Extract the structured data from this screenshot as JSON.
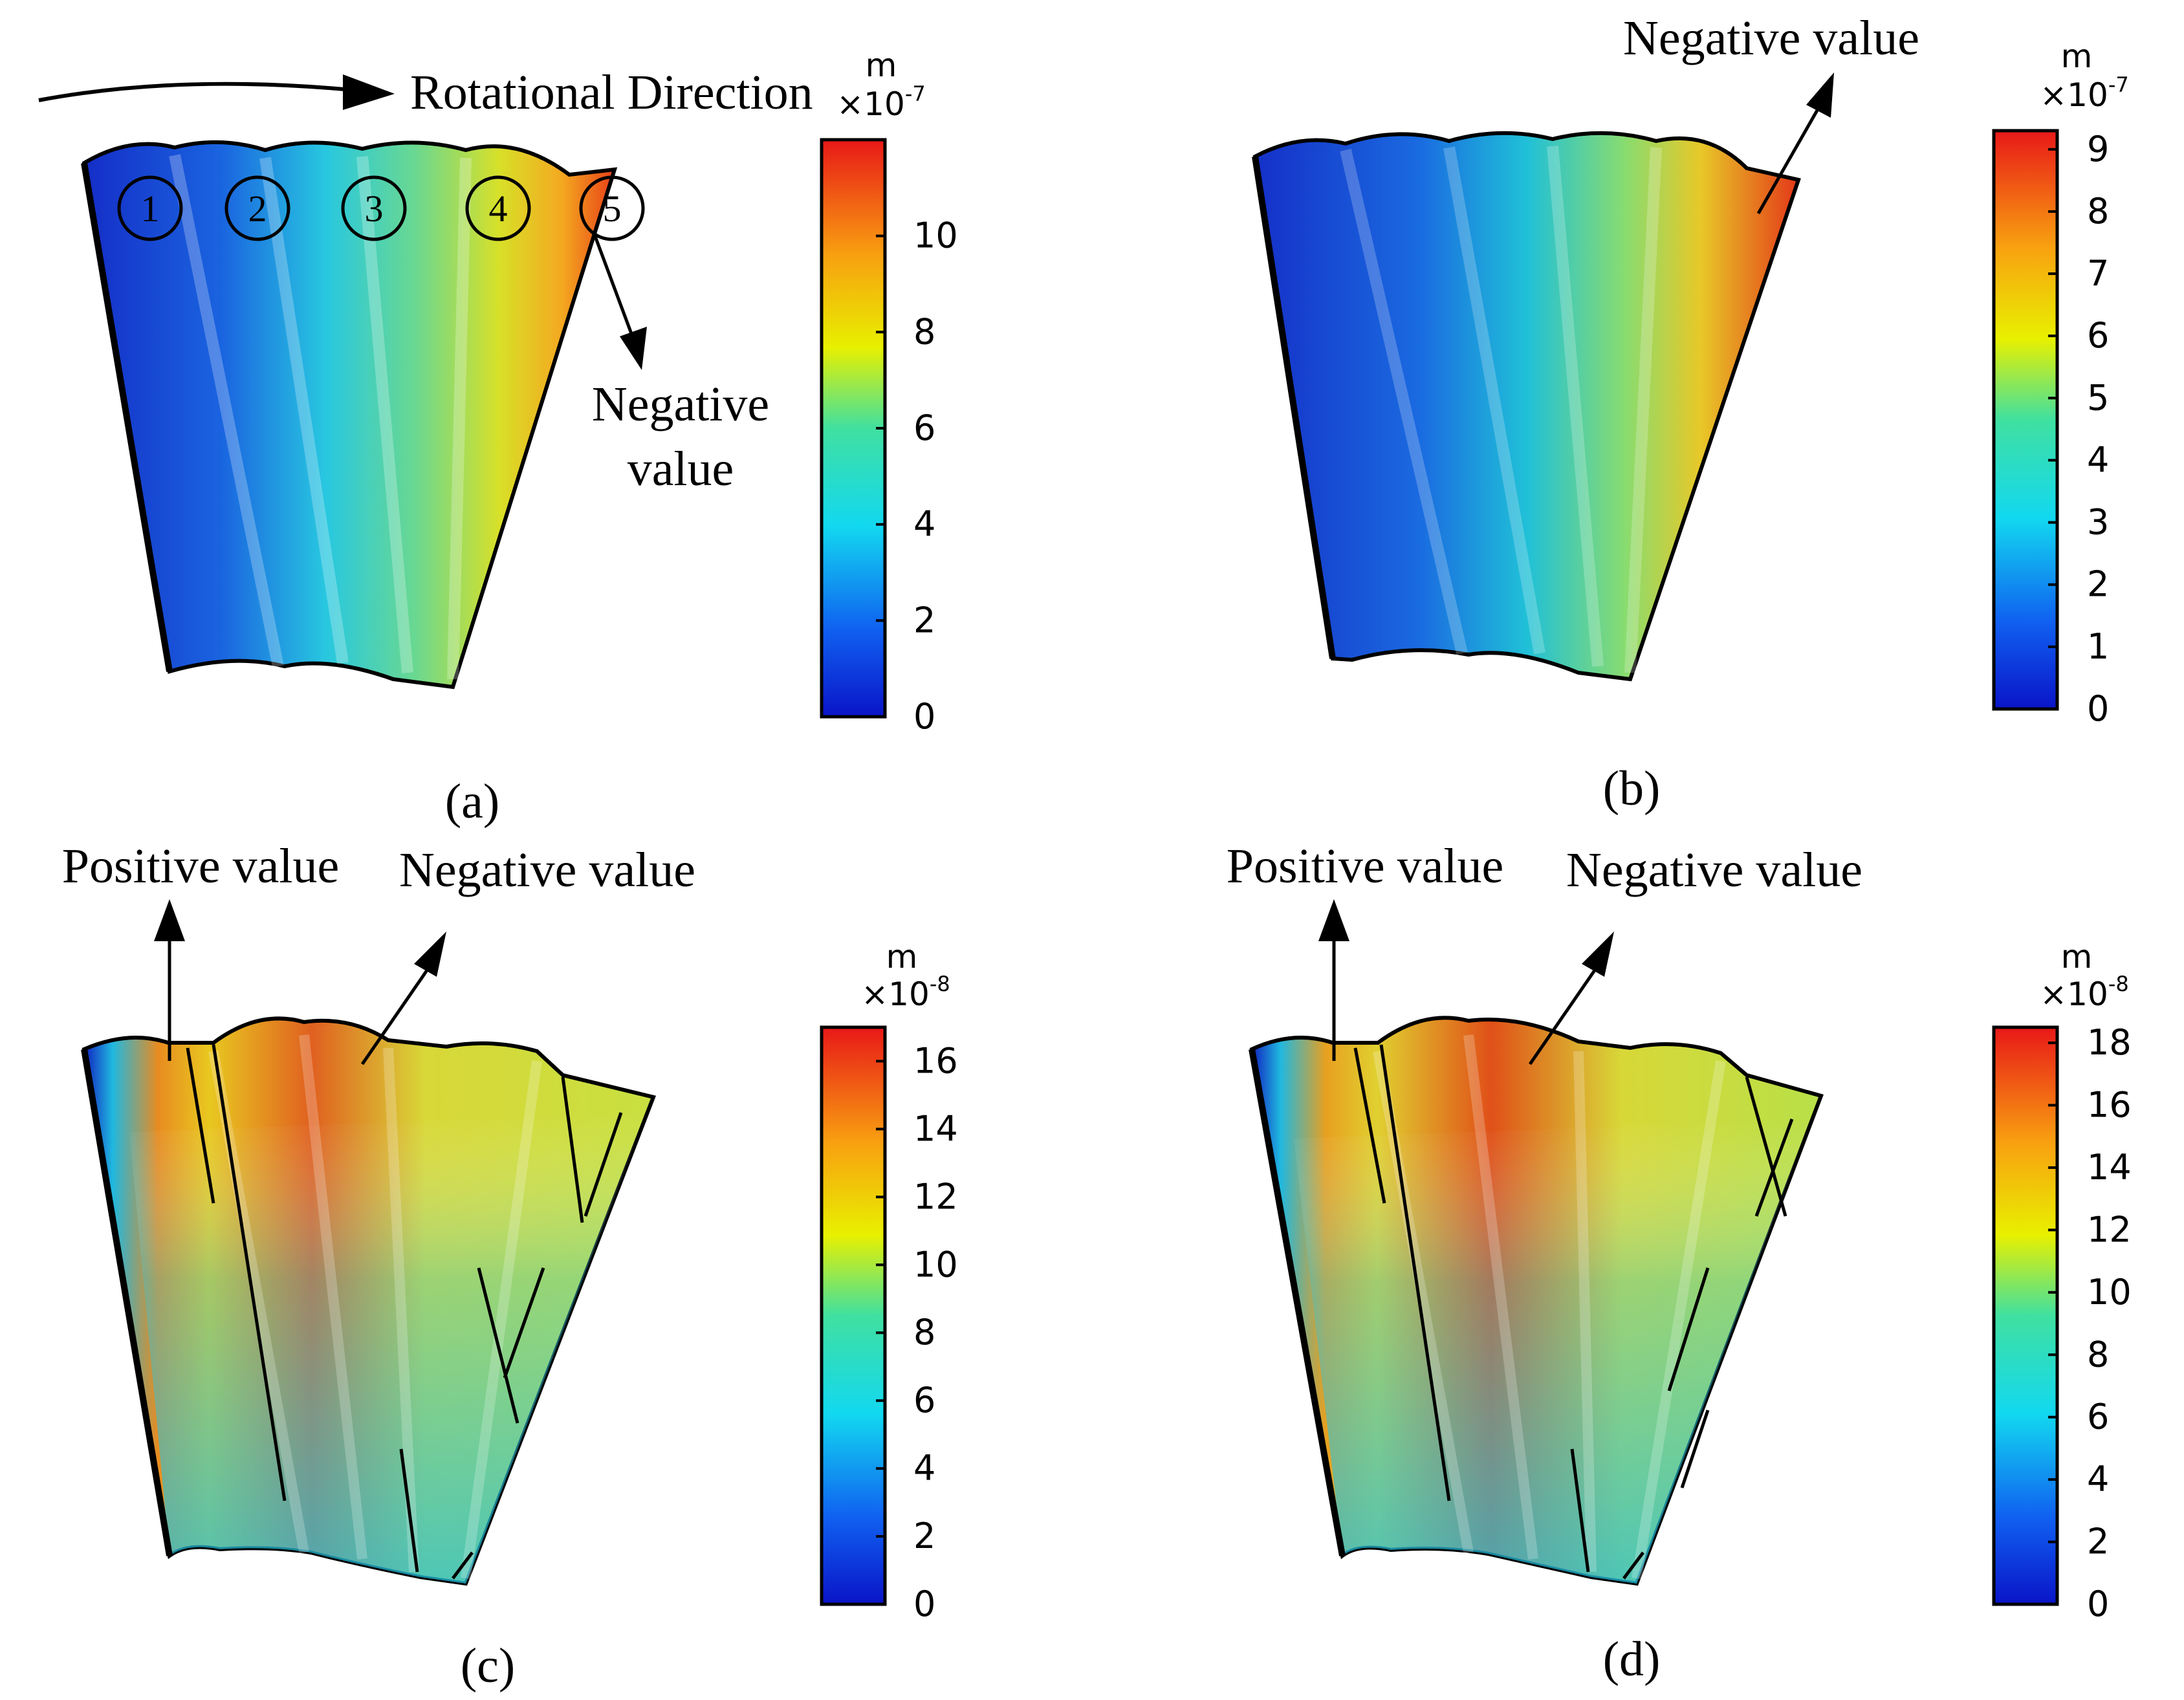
{
  "panels": [
    {
      "id": "a",
      "caption": "(a)",
      "colorbar": {
        "unit": "m",
        "exponent": "×10",
        "exponent_power": "-7",
        "ticks": [
          "0",
          "2",
          "4",
          "6",
          "8",
          "10"
        ],
        "min": 0,
        "max": 12
      },
      "annotations": {
        "rotation_label": "Rotational Direction",
        "negative_label_line1": "Negative",
        "negative_label_line2": "value",
        "markers": [
          "1",
          "2",
          "3",
          "4",
          "5"
        ]
      }
    },
    {
      "id": "b",
      "caption": "(b)",
      "colorbar": {
        "unit": "m",
        "exponent": "×10",
        "exponent_power": "-7",
        "ticks": [
          "0",
          "1",
          "2",
          "3",
          "4",
          "5",
          "6",
          "7",
          "8",
          "9"
        ],
        "min": 0,
        "max": 9.3
      },
      "annotations": {
        "negative_label": "Negative value"
      }
    },
    {
      "id": "c",
      "caption": "(c)",
      "colorbar": {
        "unit": "m",
        "exponent": "×10",
        "exponent_power": "-8",
        "ticks": [
          "0",
          "2",
          "4",
          "6",
          "8",
          "10",
          "12",
          "14",
          "16"
        ],
        "min": 0,
        "max": 17
      },
      "annotations": {
        "positive_label": "Positive value",
        "negative_label": "Negative value"
      }
    },
    {
      "id": "d",
      "caption": "(d)",
      "colorbar": {
        "unit": "m",
        "exponent": "×10",
        "exponent_power": "-8",
        "ticks": [
          "0",
          "2",
          "4",
          "6",
          "8",
          "10",
          "12",
          "14",
          "16",
          "18"
        ],
        "min": 0,
        "max": 18.5
      },
      "annotations": {
        "positive_label": "Positive value",
        "negative_label": "Negative value"
      }
    }
  ]
}
